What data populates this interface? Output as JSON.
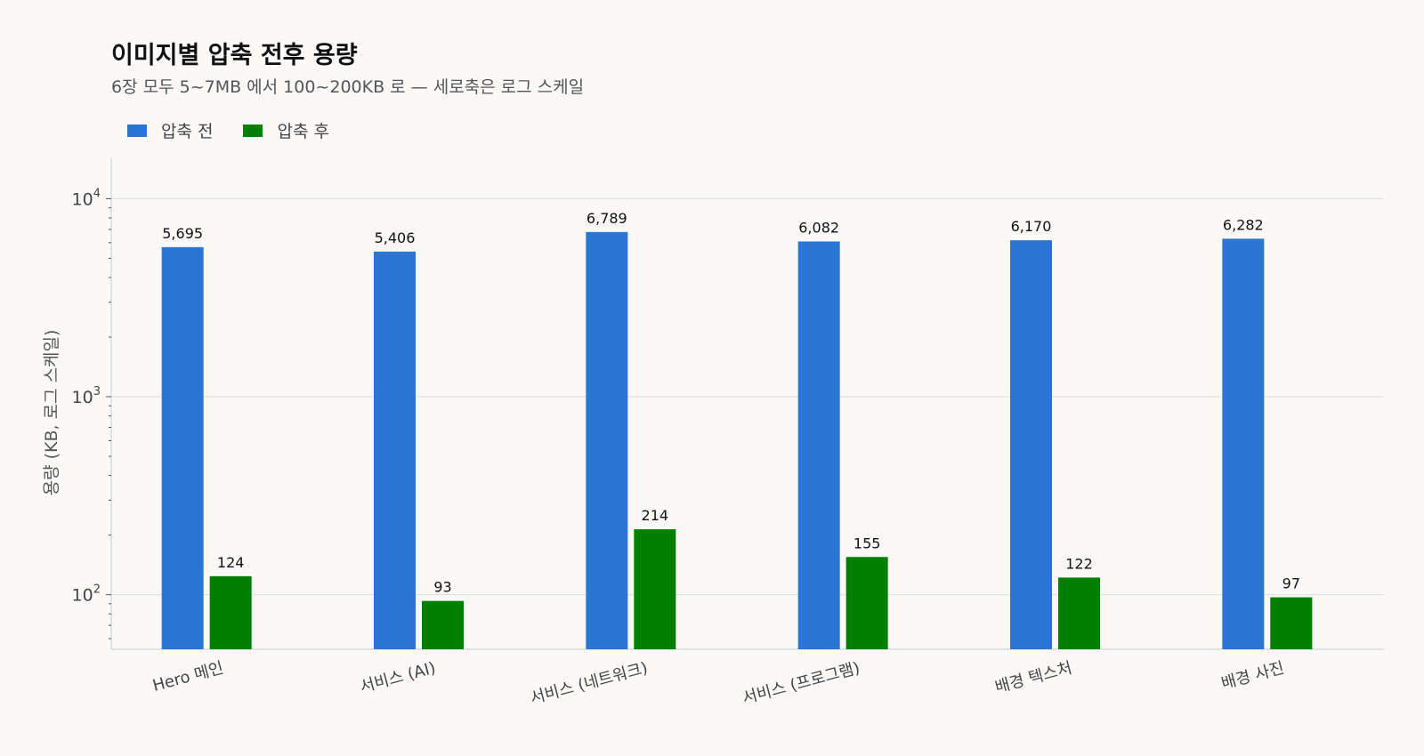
{
  "title": "이미지별 압축 전후 용량",
  "subtitle": "6장 모두 5~7MB 에서 100~200KB 로 — 세로축은 로그 스케일",
  "colors": {
    "before": "#2a76d2",
    "after": "#008000"
  },
  "chart_data": {
    "type": "bar",
    "scale": "log",
    "ylabel": "용량 (KB, 로그 스케일)",
    "ylim": [
      53,
      16000
    ],
    "yticks": [
      {
        "value": 10000,
        "base": "10",
        "exp": "4"
      },
      {
        "value": 1000,
        "base": "10",
        "exp": "3"
      },
      {
        "value": 100,
        "base": "10",
        "exp": "2"
      }
    ],
    "grid": true,
    "legend_position": "top-left",
    "categories": [
      "Hero 메인",
      "서비스 (AI)",
      "서비스 (네트워크)",
      "서비스 (프로그램)",
      "배경 텍스처",
      "배경 사진"
    ],
    "series": [
      {
        "name": "압축 전",
        "values": [
          5695,
          5406,
          6789,
          6082,
          6170,
          6282
        ],
        "labels": [
          "5,695",
          "5,406",
          "6,789",
          "6,082",
          "6,170",
          "6,282"
        ]
      },
      {
        "name": "압축 후",
        "values": [
          124,
          93,
          214,
          155,
          122,
          97
        ],
        "labels": [
          "124",
          "93",
          "214",
          "155",
          "122",
          "97"
        ]
      }
    ]
  }
}
